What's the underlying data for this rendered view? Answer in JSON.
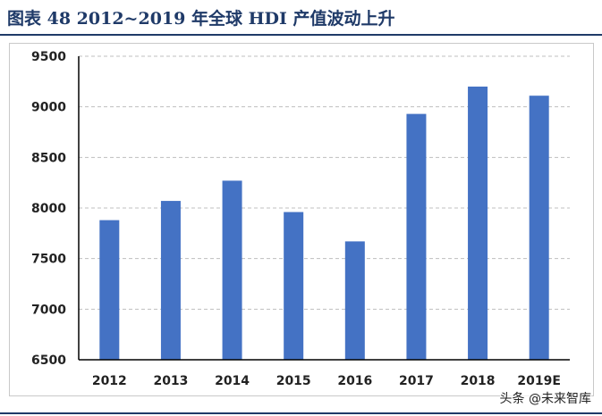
{
  "header": {
    "title": "图表 48    2012~2019 年全球 HDI 产值波动上升"
  },
  "watermark": "头条 @未来智库",
  "chart_data": {
    "type": "bar",
    "categories": [
      "2012",
      "2013",
      "2014",
      "2015",
      "2016",
      "2017",
      "2018",
      "2019E"
    ],
    "values": [
      7880,
      8070,
      8270,
      7960,
      7670,
      8930,
      9200,
      9110
    ],
    "ylim": [
      6500,
      9500
    ],
    "yticks": [
      6500,
      7000,
      7500,
      8000,
      8500,
      9000,
      9500
    ],
    "bar_color": "#4472c4",
    "grid": true,
    "grid_style": "dashed",
    "legend": "none"
  }
}
